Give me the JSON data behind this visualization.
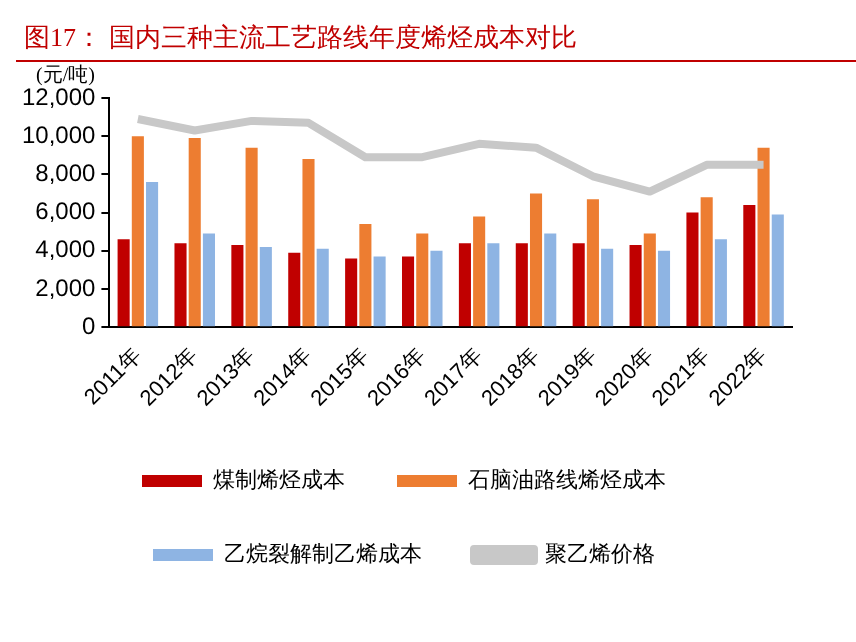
{
  "chart_data": {
    "type": "bar",
    "title": "图17：  国内三种主流工艺路线年度烯烃成本对比",
    "ylabel": "(元/吨)",
    "categories": [
      "2011年",
      "2012年",
      "2013年",
      "2014年",
      "2015年",
      "2016年",
      "2017年",
      "2018年",
      "2019年",
      "2020年",
      "2021年",
      "2022年"
    ],
    "series": [
      {
        "name": "煤制烯烃成本",
        "color": "#c00000",
        "values": [
          4600,
          4400,
          4300,
          3900,
          3600,
          3700,
          4400,
          4400,
          4400,
          4300,
          6000,
          6400
        ]
      },
      {
        "name": "石脑油路线烯烃成本",
        "color": "#ed7d31",
        "values": [
          10000,
          9900,
          9400,
          8800,
          5400,
          4900,
          5800,
          7000,
          6700,
          4900,
          6800,
          9400
        ]
      },
      {
        "name": "乙烷裂解制乙烯成本",
        "color": "#8eb4e3",
        "values": [
          7600,
          4900,
          4200,
          4100,
          3700,
          4000,
          4400,
          4900,
          4100,
          4000,
          4600,
          5900
        ]
      },
      {
        "name": "聚乙烯价格",
        "type": "line",
        "color": "#c8c8c8",
        "values": [
          10900,
          10300,
          10800,
          10700,
          8900,
          8900,
          9600,
          9400,
          7900,
          7100,
          8500,
          8500
        ]
      }
    ],
    "ylim": [
      0,
      12000
    ],
    "yticks": [
      {
        "value": 0,
        "label": "0"
      },
      {
        "value": 2000,
        "label": "2,000"
      },
      {
        "value": 4000,
        "label": "4,000"
      },
      {
        "value": 6000,
        "label": "6,000"
      },
      {
        "value": 8000,
        "label": "8,000"
      },
      {
        "value": 10000,
        "label": "10,000"
      },
      {
        "value": 12000,
        "label": "12,000"
      }
    ],
    "grid": false,
    "legend": "bottom",
    "marker": "none"
  }
}
